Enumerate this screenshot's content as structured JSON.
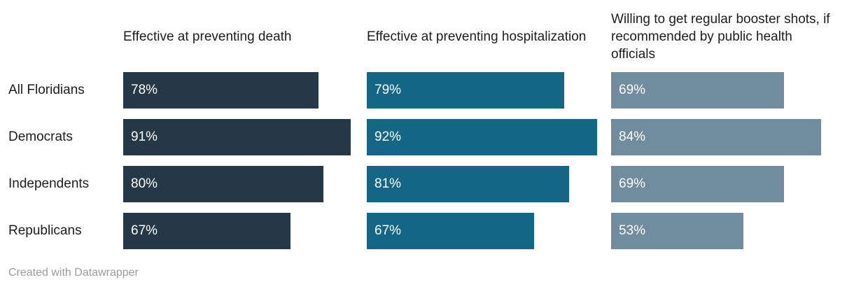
{
  "chart_data": {
    "type": "bar",
    "orientation": "horizontal",
    "title": "",
    "categories": [
      "All Floridians",
      "Democrats",
      "Independents",
      "Republicans"
    ],
    "series": [
      {
        "name": "Effective at preventing death",
        "color": "#243848",
        "values": [
          78,
          91,
          80,
          67
        ],
        "labels": [
          "78%",
          "91%",
          "80%",
          "67%"
        ]
      },
      {
        "name": "Effective at preventing hospitalization",
        "color": "#156685",
        "values": [
          79,
          92,
          81,
          67
        ],
        "labels": [
          "79%",
          "92%",
          "81%",
          "67%"
        ]
      },
      {
        "name": "Willing to get regular booster shots, if recommended by public health officials",
        "color": "#708C9E",
        "values": [
          69,
          84,
          69,
          53
        ],
        "labels": [
          "69%",
          "84%",
          "69%",
          "53%"
        ]
      }
    ],
    "value_unit": "%",
    "xlim": [
      0,
      100
    ],
    "bar_label_position": "inside-left",
    "grid": false,
    "legend": "column-headers"
  },
  "footer": {
    "credit": "Created with Datawrapper"
  },
  "colors": {
    "background": "#ffffff",
    "header_text": "#1d1d1d",
    "row_label_text": "#1d1d1d",
    "bar_value_text": "#ffffff",
    "credit_text": "#9b9b9b"
  }
}
